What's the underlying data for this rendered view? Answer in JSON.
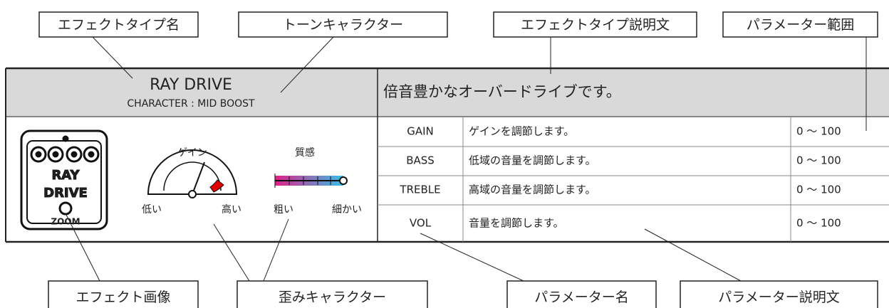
{
  "callouts_top": [
    "エフェクトタイプ名",
    "トーンキャラクター",
    "エフェクトタイプ説明文",
    "パラメーター範囲"
  ],
  "callouts_bottom": [
    "エフェクト画像",
    "歪みキャラクター",
    "パラメーター名",
    "パラメーター説明文"
  ],
  "effect": {
    "name": "RAY DRIVE",
    "character": "CHARACTER : MID BOOST",
    "description": "倍音豊かなオーバードライブです。",
    "gain": {
      "title": "ゲイン",
      "low": "低い",
      "high": "高い"
    },
    "texture": {
      "title": "質感",
      "low": "粗い",
      "high": "細かい"
    }
  },
  "table": {
    "rows": [
      [
        "GAIN",
        "ゲインを調節します。",
        "0 ～ 100"
      ],
      [
        "BASS",
        "低域の音量を調節します。",
        "0 ～ 100"
      ],
      [
        "TREBLE",
        "高域の音量を調節します。",
        "0 ～ 100"
      ],
      [
        "VOL",
        "音量を調節します。",
        "0 ～ 100"
      ]
    ]
  }
}
